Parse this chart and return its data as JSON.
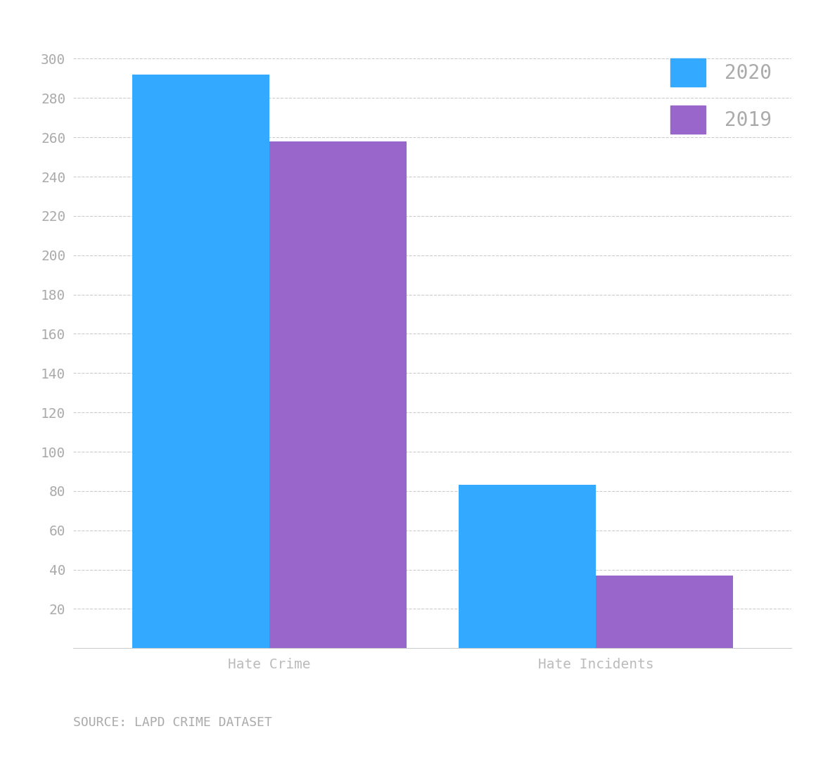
{
  "categories": [
    "Hate Crime",
    "Hate Incidents"
  ],
  "values_2020": [
    292,
    83
  ],
  "values_2019": [
    258,
    37
  ],
  "color_2020": "#33aaff",
  "color_2019": "#9966cc",
  "legend_labels": [
    "2020",
    "2019"
  ],
  "ylabel_ticks": [
    20,
    40,
    60,
    80,
    100,
    120,
    140,
    160,
    180,
    200,
    220,
    240,
    260,
    280,
    300
  ],
  "source_text": "SOURCE: LAPD CRIME DATASET",
  "background_color": "#ffffff",
  "grid_color": "#cccccc",
  "tick_color": "#aaaaaa",
  "label_color": "#bbbbbb",
  "legend_text_color": "#aaaaaa",
  "bar_width": 0.42,
  "ylim": [
    0,
    310
  ],
  "xlim": [
    -0.6,
    1.6
  ]
}
